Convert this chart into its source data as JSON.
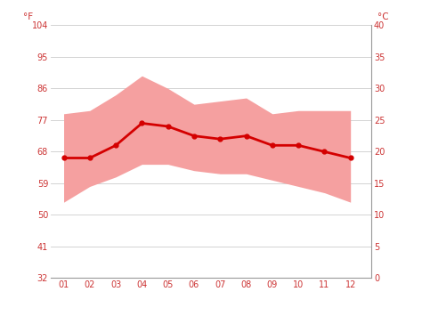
{
  "months": [
    1,
    2,
    3,
    4,
    5,
    6,
    7,
    8,
    9,
    10,
    11,
    12
  ],
  "month_labels": [
    "01",
    "02",
    "03",
    "04",
    "05",
    "06",
    "07",
    "08",
    "09",
    "10",
    "11",
    "12"
  ],
  "avg_temp_c": [
    19.0,
    19.0,
    21.0,
    24.5,
    24.0,
    22.5,
    22.0,
    22.5,
    21.0,
    21.0,
    20.0,
    19.0
  ],
  "max_temp_c": [
    26.0,
    26.5,
    29.0,
    32.0,
    30.0,
    27.5,
    28.0,
    28.5,
    26.0,
    26.5,
    26.5,
    26.5
  ],
  "min_temp_c": [
    12.0,
    14.5,
    16.0,
    18.0,
    18.0,
    17.0,
    16.5,
    16.5,
    15.5,
    14.5,
    13.5,
    12.0
  ],
  "y_ticks_c": [
    0,
    5,
    10,
    15,
    20,
    25,
    30,
    35,
    40
  ],
  "y_ticks_f": [
    32,
    41,
    50,
    59,
    68,
    77,
    86,
    95,
    104
  ],
  "ylim_c": [
    0,
    40
  ],
  "xlim": [
    0.5,
    12.8
  ],
  "line_color": "#d40000",
  "fill_color": "#f5a0a0",
  "bg_color": "#ffffff",
  "grid_color": "#cccccc",
  "tick_color": "#cc3333",
  "left_label": "°F",
  "right_label": "°C",
  "figsize": [
    4.74,
    3.55
  ],
  "dpi": 100
}
